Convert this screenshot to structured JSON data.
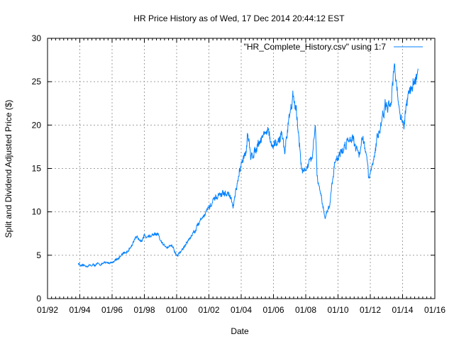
{
  "chart_data": {
    "type": "line",
    "title": "HR Price History as of Wed, 17 Dec 2014 20:44:12 EST",
    "xlabel": "Date",
    "ylabel": "Split and Dividend Adjusted Price ($)",
    "xlim": [
      1992,
      2016
    ],
    "ylim": [
      0,
      30
    ],
    "x_ticks": [
      {
        "value": 1992,
        "label": "01/92"
      },
      {
        "value": 1994,
        "label": "01/94"
      },
      {
        "value": 1996,
        "label": "01/96"
      },
      {
        "value": 1998,
        "label": "01/98"
      },
      {
        "value": 2000,
        "label": "01/00"
      },
      {
        "value": 2002,
        "label": "01/02"
      },
      {
        "value": 2004,
        "label": "01/04"
      },
      {
        "value": 2006,
        "label": "01/06"
      },
      {
        "value": 2008,
        "label": "01/08"
      },
      {
        "value": 2010,
        "label": "01/10"
      },
      {
        "value": 2012,
        "label": "01/12"
      },
      {
        "value": 2014,
        "label": "01/14"
      },
      {
        "value": 2016,
        "label": "01/16"
      }
    ],
    "y_ticks": [
      {
        "value": 0,
        "label": "0"
      },
      {
        "value": 5,
        "label": "5"
      },
      {
        "value": 10,
        "label": "10"
      },
      {
        "value": 15,
        "label": "15"
      },
      {
        "value": 20,
        "label": "20"
      },
      {
        "value": 25,
        "label": "25"
      },
      {
        "value": 30,
        "label": "30"
      }
    ],
    "grid": true,
    "legend_position": "top-right",
    "series": [
      {
        "name": "\"HR_Complete_History.csv\" using 1:7",
        "color": "#0080ff",
        "points": [
          [
            1993.9,
            4.1
          ],
          [
            1994.1,
            3.7
          ],
          [
            1995.0,
            3.9
          ],
          [
            1996.0,
            4.2
          ],
          [
            1997.0,
            5.5
          ],
          [
            1997.3,
            6.6
          ],
          [
            1998.0,
            7.2
          ],
          [
            1998.8,
            7.3
          ],
          [
            1999.2,
            6.0
          ],
          [
            1999.7,
            6.2
          ],
          [
            2000.0,
            4.9
          ],
          [
            2000.3,
            5.5
          ],
          [
            2001.0,
            7.5
          ],
          [
            2001.6,
            9.5
          ],
          [
            2002.0,
            10.5
          ],
          [
            2002.7,
            12.0
          ],
          [
            2003.3,
            12.0
          ],
          [
            2003.5,
            10.5
          ],
          [
            2003.8,
            13.5
          ],
          [
            2004.3,
            17.5
          ],
          [
            2004.4,
            19.0
          ],
          [
            2004.6,
            16.0
          ],
          [
            2005.0,
            18.0
          ],
          [
            2005.6,
            19.5
          ],
          [
            2006.0,
            17.0
          ],
          [
            2006.5,
            19.0
          ],
          [
            2006.7,
            17.0
          ],
          [
            2007.0,
            21.5
          ],
          [
            2007.2,
            23.5
          ],
          [
            2007.5,
            20.0
          ],
          [
            2007.8,
            14.5
          ],
          [
            2008.4,
            16.0
          ],
          [
            2008.6,
            20.0
          ],
          [
            2008.7,
            14.0
          ],
          [
            2009.0,
            11.0
          ],
          [
            2009.2,
            9.5
          ],
          [
            2009.5,
            11.0
          ],
          [
            2009.8,
            16.0
          ],
          [
            2010.3,
            17.0
          ],
          [
            2010.5,
            18.0
          ],
          [
            2010.9,
            19.0
          ],
          [
            2011.3,
            16.5
          ],
          [
            2011.5,
            19.0
          ],
          [
            2011.8,
            16.0
          ],
          [
            2011.9,
            13.5
          ],
          [
            2012.1,
            15.0
          ],
          [
            2012.5,
            19.0
          ],
          [
            2012.9,
            22.0
          ],
          [
            2013.2,
            21.5
          ],
          [
            2013.5,
            27.5
          ],
          [
            2013.7,
            23.0
          ],
          [
            2013.9,
            21.0
          ],
          [
            2014.1,
            20.0
          ],
          [
            2014.3,
            23.0
          ],
          [
            2014.6,
            24.5
          ],
          [
            2014.96,
            26.5
          ]
        ]
      }
    ]
  }
}
